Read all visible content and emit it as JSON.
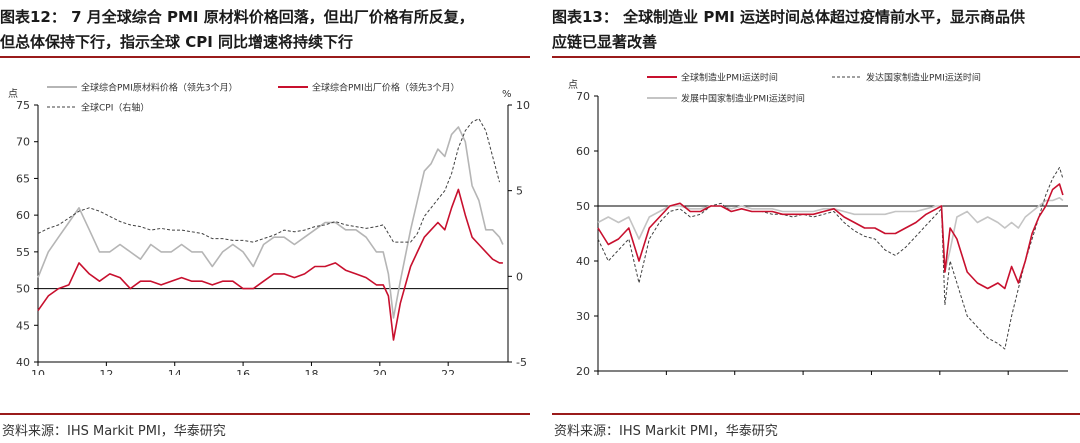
{
  "left": {
    "title_line1": "图表12： 7 月全球综合 PMI 原材料价格回落，但出厂价格有所反复，",
    "title_line2": "但总体保持下行，指示全球 CPI 同比增速将持续下行",
    "source": "资料来源：IHS Markit PMI，华泰研究",
    "chart_data": {
      "type": "line",
      "yunit_left": "点",
      "yunit_right": "%",
      "ylim_left": [
        40,
        75
      ],
      "yticks_left": [
        40,
        45,
        50,
        55,
        60,
        65,
        70,
        75
      ],
      "ylim_right": [
        -5,
        10
      ],
      "yticks_right": [
        "-5",
        "0",
        "5",
        "10"
      ],
      "xticks": [
        "10",
        "12",
        "14",
        "16",
        "18",
        "20",
        "22"
      ],
      "xlim": [
        2010.0,
        2023.75
      ],
      "reference_line": 50,
      "legend": [
        {
          "label": "全球综合PMI原材料价格（领先3个月）",
          "style": "solid",
          "color": "#b5b5b5"
        },
        {
          "label": "全球综合PMI出厂价格（领先3个月）",
          "style": "solid",
          "color": "#c8102e"
        },
        {
          "label": "全球CPI（右轴）",
          "style": "dashed",
          "color": "#404040"
        }
      ],
      "series": [
        {
          "name": "全球综合PMI原材料价格（领先3个月）",
          "axis": "left",
          "color": "#b5b5b5",
          "x": [
            2010.0,
            2010.3,
            2010.6,
            2010.9,
            2011.2,
            2011.5,
            2011.8,
            2012.1,
            2012.4,
            2012.7,
            2013.0,
            2013.3,
            2013.6,
            2013.9,
            2014.2,
            2014.5,
            2014.8,
            2015.1,
            2015.4,
            2015.7,
            2016.0,
            2016.3,
            2016.6,
            2016.9,
            2017.2,
            2017.5,
            2017.8,
            2018.1,
            2018.4,
            2018.7,
            2019.0,
            2019.3,
            2019.6,
            2019.9,
            2020.1,
            2020.25,
            2020.4,
            2020.6,
            2020.9,
            2021.1,
            2021.3,
            2021.5,
            2021.7,
            2021.9,
            2022.1,
            2022.3,
            2022.5,
            2022.7,
            2022.9,
            2023.1,
            2023.3,
            2023.5,
            2023.6
          ],
          "y": [
            51.5,
            55,
            57,
            59,
            61,
            58,
            55,
            55,
            56,
            55,
            54,
            56,
            55,
            55,
            56,
            55,
            55,
            53,
            55,
            56,
            55,
            53,
            56,
            57,
            57,
            56,
            57,
            58,
            59,
            59,
            58,
            58,
            57,
            55,
            55,
            52,
            46,
            51,
            58,
            62,
            66,
            67,
            69,
            68,
            71,
            72,
            70,
            64,
            62,
            58,
            58,
            57,
            56
          ]
        },
        {
          "name": "全球综合PMI出厂价格（领先3个月）",
          "axis": "left",
          "color": "#c8102e",
          "x": [
            2010.0,
            2010.3,
            2010.6,
            2010.9,
            2011.2,
            2011.5,
            2011.8,
            2012.1,
            2012.4,
            2012.7,
            2013.0,
            2013.3,
            2013.6,
            2013.9,
            2014.2,
            2014.5,
            2014.8,
            2015.1,
            2015.4,
            2015.7,
            2016.0,
            2016.3,
            2016.6,
            2016.9,
            2017.2,
            2017.5,
            2017.8,
            2018.1,
            2018.4,
            2018.7,
            2019.0,
            2019.3,
            2019.6,
            2019.9,
            2020.1,
            2020.25,
            2020.4,
            2020.6,
            2020.9,
            2021.1,
            2021.3,
            2021.5,
            2021.7,
            2021.9,
            2022.1,
            2022.3,
            2022.5,
            2022.7,
            2022.9,
            2023.1,
            2023.3,
            2023.5,
            2023.6
          ],
          "y": [
            47,
            49,
            50,
            50.5,
            53.5,
            52,
            51,
            52,
            51.5,
            50,
            51,
            51,
            50.5,
            51,
            51.5,
            51,
            51,
            50.5,
            51,
            51,
            50,
            50,
            51,
            52,
            52,
            51.5,
            52,
            53,
            53,
            53.5,
            52.5,
            52,
            51.5,
            50.5,
            50.5,
            49,
            43,
            48,
            53,
            55,
            57,
            58,
            59,
            58,
            61,
            63.5,
            60,
            57,
            56,
            55,
            54,
            53.5,
            53.5
          ]
        },
        {
          "name": "全球CPI（右轴）",
          "axis": "right",
          "color": "#404040",
          "dash": true,
          "x": [
            2010.0,
            2010.3,
            2010.6,
            2010.9,
            2011.2,
            2011.5,
            2011.8,
            2012.1,
            2012.4,
            2012.7,
            2013.0,
            2013.3,
            2013.6,
            2013.9,
            2014.2,
            2014.5,
            2014.8,
            2015.1,
            2015.4,
            2015.7,
            2016.0,
            2016.3,
            2016.6,
            2016.9,
            2017.2,
            2017.5,
            2017.8,
            2018.1,
            2018.4,
            2018.7,
            2019.0,
            2019.3,
            2019.6,
            2019.9,
            2020.1,
            2020.25,
            2020.4,
            2020.6,
            2020.9,
            2021.1,
            2021.3,
            2021.5,
            2021.7,
            2021.9,
            2022.1,
            2022.3,
            2022.5,
            2022.7,
            2022.9,
            2023.1,
            2023.3,
            2023.5
          ],
          "y": [
            2.5,
            2.8,
            3.0,
            3.4,
            3.8,
            4.0,
            3.8,
            3.5,
            3.2,
            3.0,
            2.9,
            2.7,
            2.8,
            2.7,
            2.7,
            2.6,
            2.5,
            2.2,
            2.2,
            2.1,
            2.1,
            2.0,
            2.2,
            2.4,
            2.7,
            2.6,
            2.7,
            2.9,
            3.0,
            3.2,
            3.0,
            2.9,
            2.8,
            2.9,
            3.0,
            2.5,
            2.0,
            2.0,
            2.0,
            2.5,
            3.5,
            4.0,
            4.5,
            5.0,
            6.0,
            7.5,
            8.5,
            9.0,
            9.2,
            8.5,
            7.0,
            5.5
          ]
        }
      ]
    }
  },
  "right": {
    "title_line1": "图表13： 全球制造业 PMI 运送时间总体超过疫情前水平，显示商品供",
    "title_line2": "应链已显著改善",
    "source": "资料来源：IHS Markit PMI，华泰研究",
    "chart_data": {
      "type": "line",
      "yunit_left": "点",
      "ylim_left": [
        20,
        70
      ],
      "yticks_left": [
        20,
        30,
        40,
        50,
        60,
        70
      ],
      "xticks": [
        "10",
        "12",
        "14",
        "16",
        "18",
        "20",
        "22"
      ],
      "xlim": [
        2010.0,
        2023.75
      ],
      "reference_line": 50,
      "legend": [
        {
          "label": "全球制造业PMI运送时间",
          "style": "solid",
          "color": "#c8102e"
        },
        {
          "label": "发达国家制造业PMI运送时间",
          "style": "dashed",
          "color": "#404040"
        },
        {
          "label": "发展中国家制造业PMI运送时间",
          "style": "solid",
          "color": "#c4c4c4"
        }
      ],
      "series": [
        {
          "name": "发展中国家制造业PMI运送时间",
          "axis": "left",
          "color": "#c4c4c4",
          "x": [
            2010.0,
            2010.3,
            2010.6,
            2010.9,
            2011.2,
            2011.5,
            2011.8,
            2012.1,
            2012.4,
            2012.7,
            2013.0,
            2013.3,
            2013.6,
            2013.9,
            2014.2,
            2014.5,
            2014.8,
            2015.1,
            2015.4,
            2015.7,
            2016.0,
            2016.3,
            2016.6,
            2016.9,
            2017.2,
            2017.5,
            2017.8,
            2018.1,
            2018.4,
            2018.7,
            2019.0,
            2019.3,
            2019.6,
            2019.9,
            2020.05,
            2020.15,
            2020.3,
            2020.5,
            2020.8,
            2021.1,
            2021.4,
            2021.7,
            2021.9,
            2022.1,
            2022.3,
            2022.5,
            2022.7,
            2022.9,
            2023.1,
            2023.3,
            2023.5,
            2023.6
          ],
          "y": [
            47,
            48,
            47,
            48,
            44,
            48,
            49,
            50,
            50,
            49.5,
            49.5,
            50,
            50,
            49.5,
            50,
            49.5,
            49.5,
            49.5,
            49,
            49,
            49,
            49,
            49.5,
            49.5,
            49,
            48.5,
            48.5,
            48.5,
            48.5,
            49,
            49,
            49,
            49.5,
            50,
            50,
            38,
            42,
            48,
            49,
            47,
            48,
            47,
            46,
            47,
            46,
            48,
            49,
            50,
            51,
            51,
            51.5,
            51
          ]
        },
        {
          "name": "发达国家制造业PMI运送时间",
          "axis": "left",
          "color": "#404040",
          "dash": true,
          "x": [
            2010.0,
            2010.3,
            2010.6,
            2010.9,
            2011.2,
            2011.5,
            2011.8,
            2012.1,
            2012.4,
            2012.7,
            2013.0,
            2013.3,
            2013.6,
            2013.9,
            2014.2,
            2014.5,
            2014.8,
            2015.1,
            2015.4,
            2015.7,
            2016.0,
            2016.3,
            2016.6,
            2016.9,
            2017.2,
            2017.5,
            2017.8,
            2018.1,
            2018.4,
            2018.7,
            2019.0,
            2019.3,
            2019.6,
            2019.9,
            2020.05,
            2020.15,
            2020.3,
            2020.5,
            2020.8,
            2021.1,
            2021.4,
            2021.7,
            2021.9,
            2022.1,
            2022.3,
            2022.5,
            2022.7,
            2022.9,
            2023.1,
            2023.3,
            2023.5,
            2023.6
          ],
          "y": [
            44,
            40,
            42,
            44,
            36,
            44,
            47,
            49,
            49.5,
            48,
            48.5,
            50,
            50.5,
            49,
            49.5,
            49,
            49,
            48.5,
            48.5,
            48,
            48.5,
            48,
            48.5,
            49,
            47,
            45.5,
            44.5,
            44,
            42,
            41,
            42.5,
            44.5,
            46.5,
            48.5,
            49.5,
            32,
            40,
            36,
            30,
            28,
            26,
            25,
            24,
            30,
            35,
            40,
            44,
            48,
            52,
            55,
            57,
            55
          ]
        },
        {
          "name": "全球制造业PMI运送时间",
          "axis": "left",
          "color": "#c8102e",
          "x": [
            2010.0,
            2010.3,
            2010.6,
            2010.9,
            2011.2,
            2011.5,
            2011.8,
            2012.1,
            2012.4,
            2012.7,
            2013.0,
            2013.3,
            2013.6,
            2013.9,
            2014.2,
            2014.5,
            2014.8,
            2015.1,
            2015.4,
            2015.7,
            2016.0,
            2016.3,
            2016.6,
            2016.9,
            2017.2,
            2017.5,
            2017.8,
            2018.1,
            2018.4,
            2018.7,
            2019.0,
            2019.3,
            2019.6,
            2019.9,
            2020.05,
            2020.15,
            2020.3,
            2020.5,
            2020.8,
            2021.1,
            2021.4,
            2021.7,
            2021.9,
            2022.1,
            2022.3,
            2022.5,
            2022.7,
            2022.9,
            2023.1,
            2023.3,
            2023.5,
            2023.6
          ],
          "y": [
            46,
            43,
            44,
            46,
            40,
            46,
            48,
            50,
            50.5,
            49,
            49,
            50,
            50,
            49,
            49.5,
            49,
            49,
            49,
            48.5,
            48.5,
            48.5,
            48.5,
            49,
            49.5,
            48,
            47,
            46,
            46,
            45,
            45,
            46,
            47,
            48.5,
            49.5,
            50,
            38,
            46,
            44,
            38,
            36,
            35,
            36,
            35,
            39,
            36,
            40,
            45,
            48,
            50,
            53,
            54,
            52
          ]
        }
      ]
    }
  }
}
